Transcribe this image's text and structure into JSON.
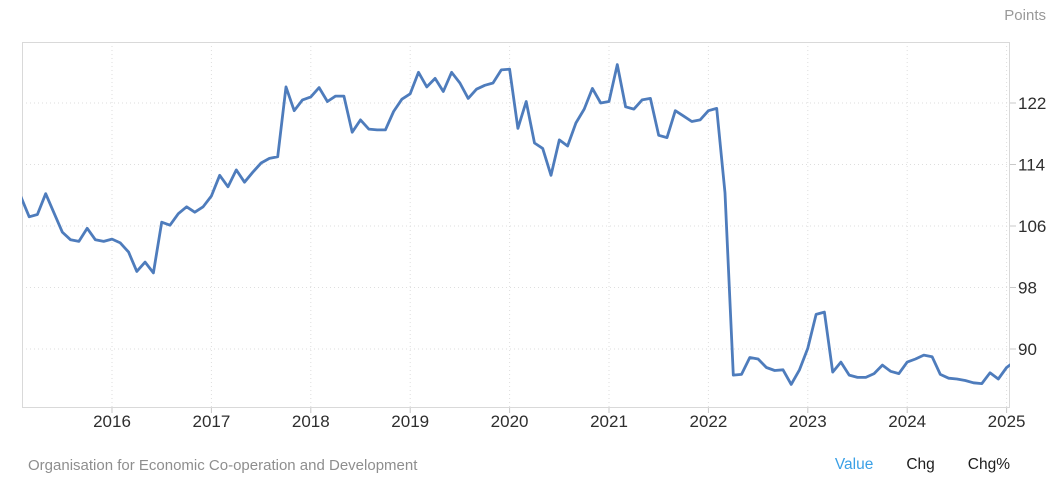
{
  "header": {
    "unit_label": "Points"
  },
  "footer": {
    "source": "Organisation for Economic Co-operation and Development",
    "modes": [
      {
        "label": "Value",
        "active": true
      },
      {
        "label": "Chg",
        "active": false
      },
      {
        "label": "Chg%",
        "active": false
      }
    ]
  },
  "colors": {
    "line": "#4e7cbc",
    "grid": "#dedede",
    "plot_border": "#d9d9d9",
    "tick_mark": "#c8c8c8",
    "axis_label": "#2e2e2e",
    "unit_label": "#999999",
    "source_label": "#8e8e8e",
    "mode_active": "#3aa0e6",
    "mode_inactive": "#1d1d1d"
  },
  "chart_data": {
    "type": "line",
    "title": "",
    "ylabel": "Points",
    "legend": [],
    "grid": "dotted",
    "y_ticks": [
      122,
      114,
      106,
      98,
      90
    ],
    "x_ticks": [
      2016,
      2017,
      2018,
      2019,
      2020,
      2021,
      2022,
      2023,
      2024,
      2025
    ],
    "ylim": [
      82.3,
      129.9
    ],
    "xlim": [
      2015.09,
      2025.08
    ],
    "frequency": "monthly",
    "start_year": 2015,
    "start_month": 2,
    "series": [
      {
        "name": "Value",
        "values": [
          109.8,
          107.2,
          107.5,
          110.2,
          107.7,
          105.2,
          104.2,
          104.0,
          105.7,
          104.2,
          104.0,
          104.3,
          103.8,
          102.6,
          100.1,
          101.3,
          99.9,
          106.5,
          106.1,
          107.6,
          108.5,
          107.8,
          108.5,
          109.9,
          112.6,
          111.1,
          113.3,
          111.7,
          113.0,
          114.2,
          114.8,
          115.0,
          124.1,
          121.0,
          122.4,
          122.8,
          124.0,
          122.2,
          122.9,
          122.9,
          118.2,
          119.8,
          118.6,
          118.5,
          118.5,
          120.9,
          122.5,
          123.2,
          126.0,
          124.1,
          125.2,
          123.5,
          126.0,
          124.6,
          122.6,
          123.8,
          124.3,
          124.6,
          126.3,
          126.4,
          118.7,
          122.2,
          116.8,
          116.1,
          112.6,
          117.2,
          116.4,
          119.4,
          121.2,
          123.9,
          122.0,
          122.2,
          127.0,
          121.5,
          121.2,
          122.4,
          122.6,
          117.8,
          117.5,
          121.0,
          120.3,
          119.6,
          119.8,
          121.0,
          121.3,
          110.3,
          86.6,
          86.7,
          88.9,
          88.7,
          87.6,
          87.2,
          87.3,
          85.4,
          87.3,
          90.1,
          94.5,
          94.8,
          87.0,
          88.3,
          86.6,
          86.3,
          86.3,
          86.8,
          87.9,
          87.1,
          86.8,
          88.3,
          88.7,
          89.2,
          89.0,
          86.7,
          86.2,
          86.1,
          85.9,
          85.6,
          85.5,
          86.9,
          86.1,
          87.6,
          88.4
        ]
      }
    ]
  }
}
